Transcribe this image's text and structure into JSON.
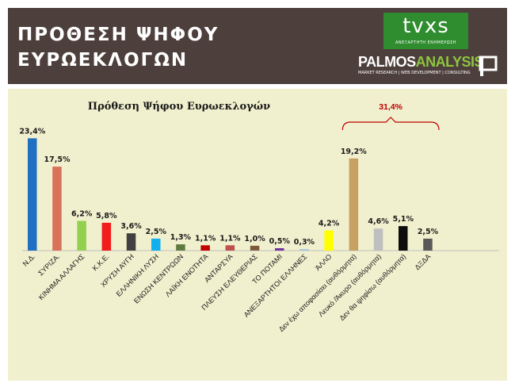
{
  "header": {
    "title_line1": "ΠΡΟΘΕΣΗ ΨΗΦΟΥ",
    "title_line2": "ΕΥΡΩΕΚΛΟΓΩΝ",
    "tvxs_logo": "tvxs",
    "tvxs_tagline": "ΑΝΕΞΑΡΤΗΤΗ ΕΝΗΜΕΡΩΣΗ",
    "palmos_logo_part1": "PALMOS",
    "palmos_logo_part2": "ANALYSIS",
    "palmos_tagline": "MARKET RESEARCH | WEB DEVELOPMENT | CONSULTING"
  },
  "chart_data": {
    "type": "bar",
    "title": "Πρόθεση Ψήφου Ευρωεκλογών",
    "categories": [
      "Ν.Δ.",
      "ΣΥΡΙΖΑ.",
      "ΚΙΝΗΜΑ ΑΛΛΑΓΗΣ",
      "Κ.Κ.Ε.",
      "ΧΡΥΣΗ ΑΥΓΗ",
      "ΕΛΛΗΝΙΚΗ ΛΥΣΗ",
      "ΕΝΩΣΗ ΚΕΝΤΡΩΩΝ",
      "ΛΑΪΚΗ ΕΝΟΤΗΤΑ",
      "ΑΝΤΑΡΣΥΑ",
      "ΠΛΕΥΣΗ ΕΛΕΥΘΕΡΙΑΣ",
      "ΤΟ ΠΟΤΑΜΙ",
      "ΑΝΕΞΑΡΤΗΤΟΙ ΕΛΛΗΝΕΣ",
      "ΆΛΛΟ",
      "Δεν έχω αποφασίσει (αυθόρμητα)",
      "Λευκό /Άκυρο (αυθόρμητα)",
      "Δεν θα ψηφίσω (αυθόρμητα)",
      "ΔΞΔΑ"
    ],
    "values": [
      23.4,
      17.5,
      6.2,
      5.8,
      3.6,
      2.5,
      1.3,
      1.1,
      1.1,
      1.0,
      0.5,
      0.3,
      4.2,
      19.2,
      4.6,
      5.1,
      2.5
    ],
    "value_labels": [
      "23,4%",
      "17,5%",
      "6,2%",
      "5,8%",
      "3,6%",
      "2,5%",
      "1,3%",
      "1,1%",
      "1,1%",
      "1,0%",
      "0,5%",
      "0,3%",
      "4,2%",
      "19,2%",
      "4,6%",
      "5,1%",
      "2,5%"
    ],
    "colors": [
      "#1f6fc2",
      "#d9725a",
      "#91d050",
      "#f21c1c",
      "#404040",
      "#12b0ee",
      "#5f7a3e",
      "#c00000",
      "#c0504d",
      "#7b5a3c",
      "#7030a0",
      "#9dc3e6",
      "#ffff00",
      "#c8a063",
      "#bfbfbf",
      "#0d0d0d",
      "#595959"
    ],
    "bracket_label": "31,4%",
    "bracket_color": "#c00000",
    "ylim": [
      0,
      25
    ],
    "grid": false,
    "legend": "none"
  }
}
